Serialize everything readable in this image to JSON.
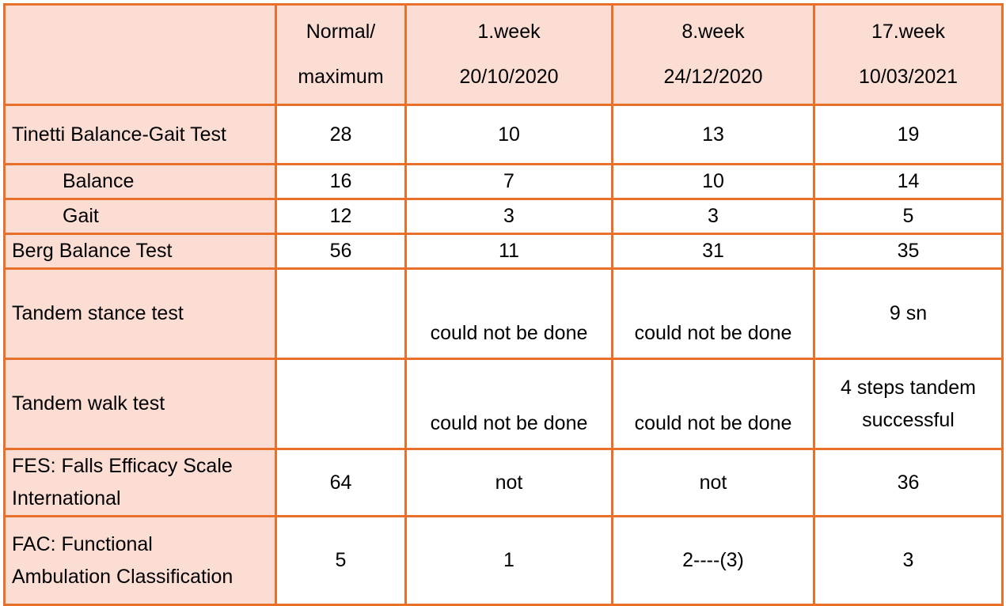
{
  "header": {
    "corner": "",
    "columns": [
      [
        "Normal/",
        "maximum"
      ],
      [
        "1.week",
        "20/10/2020"
      ],
      [
        "8.week",
        "24/12/2020"
      ],
      [
        "17.week",
        "10/03/2021"
      ]
    ]
  },
  "rows": [
    {
      "label": [
        "Tinetti Balance-Gait Test"
      ],
      "values": [
        "28",
        "10",
        "13",
        "19"
      ]
    },
    {
      "label": [
        "Balance"
      ],
      "values": [
        "16",
        "7",
        "10",
        "14"
      ]
    },
    {
      "label": [
        "Gait"
      ],
      "values": [
        "12",
        "3",
        "3",
        "5"
      ]
    },
    {
      "label": [
        "Berg Balance Test"
      ],
      "values": [
        "56",
        "11",
        "31",
        "35"
      ]
    },
    {
      "label": [
        "Tandem stance test"
      ],
      "values": [
        "",
        "could not be done",
        "could not be done",
        "9 sn"
      ]
    },
    {
      "label": [
        "Tandem walk test"
      ],
      "values": [
        "",
        "could not be done",
        "could not be done",
        [
          "4 steps tandem",
          "successful"
        ]
      ]
    },
    {
      "label": [
        "FES: Falls Efficacy Scale",
        "International"
      ],
      "values": [
        "64",
        "not",
        "not",
        "36"
      ]
    },
    {
      "label": [
        "FAC: Functional",
        "Ambulation Classification"
      ],
      "values": [
        "5",
        "1",
        "2----(3)",
        "3"
      ]
    }
  ],
  "colors": {
    "border": "#E8702A",
    "label_bg": "#FBDDD3",
    "cell_bg": "#FFFFFF"
  }
}
